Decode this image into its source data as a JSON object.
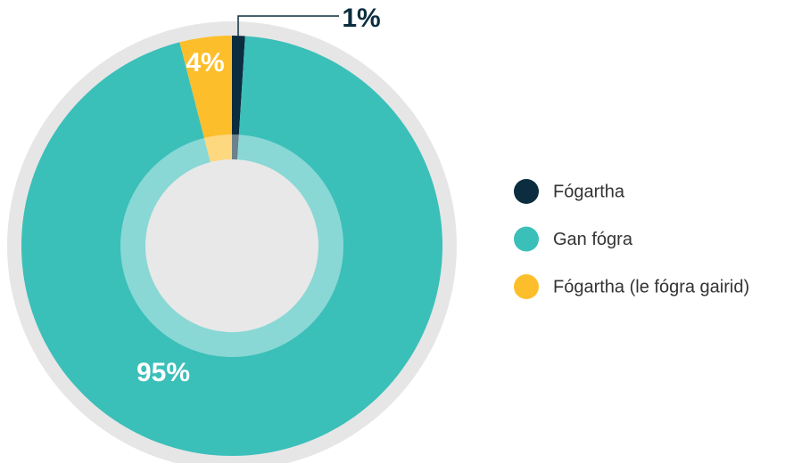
{
  "chart_data": {
    "type": "donut",
    "categories": [
      "Fógartha",
      "Gan fógra",
      "Fógartha (le fógra gairid)"
    ],
    "values": [
      1,
      95,
      4
    ],
    "value_labels": [
      "1%",
      "95%",
      "4%"
    ],
    "colors": [
      "#0b2d3f",
      "#3bbfb9",
      "#fdbe2b"
    ],
    "legend": "right"
  }
}
